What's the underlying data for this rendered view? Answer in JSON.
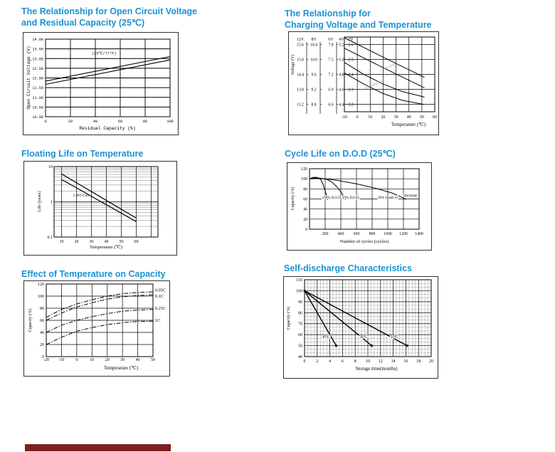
{
  "page": {
    "background": "#ffffff",
    "title_color": "#1b93d1",
    "accent_bar_color": "#7a2023"
  },
  "chart_data": [
    {
      "id": "open-circuit-voltage-vs-residual-capacity",
      "type": "line",
      "title_lines": [
        "The Relationship for Open Circuit Voltage",
        "and Residual Capacity (25℃)"
      ],
      "xlabel": "Residual Capacity (%)",
      "ylabel": "Open Circuit Voltage (V)",
      "xlim": [
        0,
        100
      ],
      "ylim": [
        10,
        14
      ],
      "x_tick_vals": [
        0,
        20,
        40,
        60,
        80,
        100
      ],
      "x_tick_labels": [
        "0",
        "20",
        "40",
        "60",
        "80",
        "100"
      ],
      "y_tick_vals": [
        14,
        13.5,
        13,
        12.5,
        12,
        11.5,
        11,
        10.5,
        10
      ],
      "y_tick_labels": [
        "14.00",
        "13.50",
        "13.00",
        "12.50",
        "12.00",
        "11.50",
        "11.00",
        "10.50",
        "10.00"
      ],
      "line_width": 1.1,
      "series": [
        {
          "name": "ocv-upper",
          "points": [
            [
              0,
              11.84
            ],
            [
              100,
              13.1
            ]
          ]
        },
        {
          "name": "ocv-lower",
          "points": [
            [
              0,
              11.67
            ],
            [
              100,
              12.93
            ]
          ]
        }
      ],
      "annotations": [
        {
          "text": "(25℃/77°F)",
          "x": 47,
          "y": 13.22,
          "size": 5.3
        }
      ]
    },
    {
      "id": "charging-voltage-vs-temperature",
      "type": "line",
      "title_lines": [
        "The Relationship for",
        "Charging Voltage and Temperature"
      ],
      "xlabel": "Temperature (℃)",
      "ylabel": "Voltage (V)",
      "xlim": [
        -10,
        60
      ],
      "ylim": [
        2.15,
        2.65
      ],
      "x_tick_vals": [
        -10,
        0,
        10,
        20,
        30,
        40,
        50,
        60
      ],
      "x_tick_labels": [
        "-10",
        "0",
        "10",
        "20",
        "30",
        "40",
        "50",
        "60"
      ],
      "grid_y": [
        2.6,
        2.5,
        2.4,
        2.3,
        2.2
      ],
      "voltage_scales": {
        "headers": [
          "12V",
          "8V",
          "6V",
          "4V",
          "2V"
        ],
        "rows": [
          [
            "15.6",
            "10.4",
            "7.8",
            "5.2",
            "2.6"
          ],
          [
            "15.0",
            "10.0",
            "7.5",
            "5.0",
            "2.5"
          ],
          [
            "14.4",
            "9.6",
            "7.2",
            "4.8",
            "2.4"
          ],
          [
            "13.8",
            "9.2",
            "6.9",
            "4.6",
            "2.3"
          ],
          [
            "13.2",
            "8.8",
            "6.6",
            "4.4",
            "2.2"
          ]
        ]
      },
      "line_width": 1,
      "series": [
        {
          "name": "cycle-use-upper",
          "points": [
            [
              -10,
              2.645
            ],
            [
              20,
              2.515
            ],
            [
              52,
              2.38
            ]
          ]
        },
        {
          "name": "cycle-use-lower",
          "points": [
            [
              -10,
              2.575
            ],
            [
              20,
              2.445
            ],
            [
              52,
              2.31
            ]
          ]
        },
        {
          "name": "floating-use-upper",
          "points": [
            [
              -10,
              2.48
            ],
            [
              5,
              2.4
            ],
            [
              20,
              2.335
            ],
            [
              35,
              2.285
            ],
            [
              52,
              2.248
            ]
          ]
        },
        {
          "name": "floating-use-lower",
          "points": [
            [
              -10,
              2.41
            ],
            [
              5,
              2.335
            ],
            [
              20,
              2.272
            ],
            [
              35,
              2.226
            ],
            [
              52,
              2.198
            ]
          ]
        }
      ],
      "annotations": [
        {
          "text": "Cycle Use",
          "x": 24,
          "y": 2.44,
          "rotate": -25,
          "color": "#9b9b9b",
          "size": 5.5
        },
        {
          "text": "Floating Use",
          "x": 14,
          "y": 2.328,
          "rotate": -25,
          "color": "#9b9b9b",
          "size": 5.5
        }
      ]
    },
    {
      "id": "floating-life-on-temperature",
      "type": "line",
      "title_lines": [
        "Floating Life on Temperature"
      ],
      "xlabel": "Temperature (℃)",
      "ylabel": "Life (years)",
      "xlim": [
        5,
        74.5
      ],
      "ylim": [
        0.1,
        10
      ],
      "ylog": true,
      "minor_log": true,
      "x_tick_vals": [
        10,
        20,
        30,
        40,
        50,
        60
      ],
      "x_tick_labels": [
        "10",
        "20",
        "30",
        "40",
        "50",
        "60"
      ],
      "grid_x": [
        10,
        20,
        30,
        40,
        50,
        60,
        70
      ],
      "y_tick_vals": [
        10,
        1,
        0.1
      ],
      "y_tick_labels": [
        "10",
        "1",
        "0.1"
      ],
      "line_width": 1.2,
      "series": [
        {
          "name": "life-band-upper",
          "points": [
            [
              10,
              6.2
            ],
            [
              60,
              0.345
            ]
          ]
        },
        {
          "name": "life-band-lower",
          "points": [
            [
              10,
              4.3
            ],
            [
              60,
              0.275
            ]
          ]
        }
      ],
      "annotations": [
        {
          "text": "2.30V/Cell",
          "x": 23,
          "y": 1.42,
          "size": 5
        }
      ]
    },
    {
      "id": "cycle-life-on-dod",
      "type": "line",
      "title_lines": [
        "Cycle Life on D.O.D (25℃)"
      ],
      "xlabel": "Number of cycles (cycles)",
      "ylabel": "Capacity (%)",
      "xlim": [
        0,
        1400
      ],
      "ylim": [
        0,
        120
      ],
      "x_tick_vals": [
        200,
        400,
        600,
        800,
        1000,
        1200,
        1400
      ],
      "x_tick_labels": [
        "200",
        "400",
        "600",
        "800",
        "1000",
        "1200",
        "1400"
      ],
      "y_tick_vals": [
        0,
        20,
        40,
        60,
        80,
        100,
        120
      ],
      "y_tick_labels": [
        "0",
        "20",
        "40",
        "60",
        "80",
        "100",
        "120"
      ],
      "line_width": 1,
      "series": [
        {
          "name": "dod-100",
          "points": [
            [
              0,
              100
            ],
            [
              40,
              102.5
            ],
            [
              80,
              103
            ],
            [
              120,
              101.5
            ],
            [
              150,
              97
            ],
            [
              175,
              88
            ],
            [
              200,
              76
            ],
            [
              225,
              63
            ],
            [
              233,
              58
            ]
          ]
        },
        {
          "name": "dod-50",
          "points": [
            [
              0,
              100
            ],
            [
              150,
              100.5
            ],
            [
              220,
              99
            ],
            [
              290,
              93
            ],
            [
              350,
              84
            ],
            [
              410,
              72
            ],
            [
              450,
              62
            ],
            [
              462,
              58
            ]
          ]
        },
        {
          "name": "dod-30",
          "points": [
            [
              0,
              100
            ],
            [
              60,
              101.5
            ],
            [
              150,
              101
            ],
            [
              350,
              97
            ],
            [
              600,
              90
            ],
            [
              850,
              81
            ],
            [
              1050,
              72
            ],
            [
              1200,
              62
            ],
            [
              1235,
              59
            ]
          ]
        }
      ],
      "annotations": [
        {
          "text": "100% D.O.D.",
          "x": 285,
          "y": 61,
          "size": 5,
          "halo": true
        },
        {
          "text": "50% D.O.D.",
          "x": 530,
          "y": 61,
          "size": 5,
          "halo": true
        },
        {
          "text": "30% Depth of",
          "x": 1000,
          "y": 61,
          "size": 5,
          "halo": true
        },
        {
          "text": "discharge",
          "x": 1290,
          "y": 65,
          "size": 5,
          "halo": true
        }
      ]
    },
    {
      "id": "effect-of-temperature-on-capacity",
      "type": "line",
      "title_lines": [
        "Effect of Temperature on Capacity"
      ],
      "xlabel": "Temperature (℃)",
      "ylabel": "Capacity (%)",
      "xlim": [
        -20,
        50
      ],
      "ylim": [
        0,
        120
      ],
      "x_tick_vals": [
        -20,
        -10,
        0,
        10,
        20,
        30,
        40,
        50
      ],
      "x_tick_labels": [
        "-20",
        "-10",
        "0",
        "10",
        "20",
        "30",
        "40",
        "50"
      ],
      "y_tick_vals": [
        0,
        20,
        40,
        60,
        80,
        100,
        120
      ],
      "y_tick_labels": [
        "0",
        "20",
        "40",
        "60",
        "80",
        "100",
        "120"
      ],
      "line_width": 1,
      "series": [
        {
          "name": "rate-0.05C",
          "dash": true,
          "points": [
            [
              -20,
              65
            ],
            [
              -10,
              78
            ],
            [
              0,
              87
            ],
            [
              10,
              94
            ],
            [
              20,
              100
            ],
            [
              30,
              104
            ],
            [
              40,
              106
            ],
            [
              50,
              107
            ]
          ]
        },
        {
          "name": "rate-0.1C",
          "dash": true,
          "points": [
            [
              -20,
              60
            ],
            [
              -10,
              72
            ],
            [
              0,
              82
            ],
            [
              10,
              89
            ],
            [
              20,
              95
            ],
            [
              30,
              99
            ],
            [
              40,
              101
            ],
            [
              50,
              102
            ]
          ]
        },
        {
          "name": "rate-0.25C",
          "dash": true,
          "points": [
            [
              -20,
              40
            ],
            [
              -10,
              52
            ],
            [
              0,
              60
            ],
            [
              10,
              66
            ],
            [
              20,
              71
            ],
            [
              30,
              75
            ],
            [
              40,
              77
            ],
            [
              50,
              78
            ]
          ]
        },
        {
          "name": "rate-1C",
          "dash": true,
          "points": [
            [
              -20,
              20
            ],
            [
              -10,
              32
            ],
            [
              0,
              42
            ],
            [
              10,
              48
            ],
            [
              20,
              53
            ],
            [
              30,
              56
            ],
            [
              40,
              58
            ],
            [
              50,
              58.5
            ]
          ]
        }
      ],
      "legend": [
        {
          "label": "0.05C",
          "y": 110
        },
        {
          "label": "0.1C",
          "y": 100
        },
        {
          "label": "0.25C",
          "y": 80
        },
        {
          "label": "1C",
          "y": 60
        }
      ]
    },
    {
      "id": "self-discharge-characteristics",
      "type": "line",
      "title_lines": [
        "Self-discharge Characteristics"
      ],
      "xlabel": "Storage time(months)",
      "ylabel": "Capacity (%)",
      "xlim": [
        0,
        20
      ],
      "ylim": [
        40,
        110
      ],
      "x_tick_vals": [
        0,
        2,
        4,
        6,
        8,
        10,
        12,
        14,
        16,
        18,
        20
      ],
      "x_tick_labels": [
        "0",
        "2",
        "4",
        "6",
        "8",
        "10",
        "12",
        "14",
        "16",
        "18",
        "20"
      ],
      "y_tick_vals": [
        40,
        50,
        60,
        70,
        80,
        90,
        100,
        110
      ],
      "y_tick_labels": [
        "40",
        "50",
        "60",
        "70",
        "80",
        "90",
        "100",
        "110"
      ],
      "minor": {
        "x_step": 0.5,
        "x_major": 2,
        "y_step": 3.3333,
        "y_major": 10
      },
      "line_width": 1.4,
      "series": [
        {
          "name": "storage-40C",
          "marker_end": true,
          "marker_start": true,
          "points": [
            [
              0,
              100
            ],
            [
              5,
              50
            ]
          ]
        },
        {
          "name": "storage-30C",
          "marker_end": true,
          "points": [
            [
              0,
              100
            ],
            [
              10.6,
              50
            ]
          ]
        },
        {
          "name": "storage-20C",
          "marker_end": true,
          "points": [
            [
              0,
              100
            ],
            [
              16.2,
              50
            ]
          ]
        }
      ],
      "annotations": [
        {
          "text": "40℃",
          "x": 3.4,
          "y": 57,
          "size": 5.5,
          "halo": true
        },
        {
          "text": "30℃",
          "x": 9.3,
          "y": 57,
          "size": 5.5,
          "halo": true
        },
        {
          "text": "20℃",
          "x": 14.2,
          "y": 57,
          "size": 5.5,
          "halo": true
        }
      ]
    }
  ]
}
